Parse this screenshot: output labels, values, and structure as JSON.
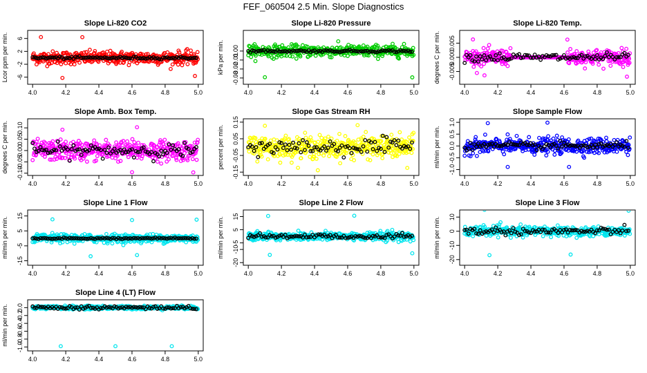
{
  "figure": {
    "title": "FEF_060504  2.5 Min. Slope Diagnostics"
  },
  "chart_data": [
    {
      "type": "scatter",
      "title": "Slope Li-820 CO2",
      "ylabel": "Lcor ppm per min.",
      "color": "#ff0000",
      "xlim": [
        3.97,
        5.03
      ],
      "ylim": [
        -8.2,
        8.5
      ],
      "xticks": [
        4.0,
        4.2,
        4.4,
        4.6,
        4.8,
        5.0
      ],
      "xtick_labels": [
        "4.0",
        "4.2",
        "4.4",
        "4.6",
        "4.8",
        "5.0"
      ],
      "yticks": [
        -6,
        -2,
        2,
        6
      ],
      "ytick_labels": [
        "-6",
        "-2",
        "2",
        "6"
      ],
      "noise": 1.4,
      "spread": 1.8,
      "black_spread": 0.35,
      "outliers": [
        4.05,
        4.18,
        4.3,
        4.98
      ],
      "outlier_amp": 6.5
    },
    {
      "type": "scatter",
      "title": "Slope Li-820 Pressure",
      "ylabel": "kPa per min.",
      "color": "#00cc00",
      "xlim": [
        3.97,
        5.03
      ],
      "ylim": [
        -0.037,
        0.023
      ],
      "xticks": [
        4.0,
        4.2,
        4.4,
        4.6,
        4.8,
        5.0
      ],
      "xtick_labels": [
        "4.0",
        "4.2",
        "4.4",
        "4.6",
        "4.8",
        "5.0"
      ],
      "yticks": [
        -0.03,
        -0.02,
        -0.01,
        0.0
      ],
      "ytick_labels": [
        "-0.03",
        "-0.02",
        "-0.01",
        "0.00"
      ],
      "noise": 0.007,
      "spread": 0.006,
      "black_spread": 0.0012,
      "outliers": [
        4.02,
        4.1,
        4.34,
        4.99
      ],
      "outlier_amp": 0.03
    },
    {
      "type": "scatter",
      "title": "Slope Li-820 Temp.",
      "ylabel": "degrees C per min.",
      "color": "#ff00ff",
      "xlim": [
        3.97,
        5.03
      ],
      "ylim": [
        -0.0095,
        0.0095
      ],
      "xticks": [
        4.0,
        4.2,
        4.4,
        4.6,
        4.8,
        5.0
      ],
      "xtick_labels": [
        "4.0",
        "4.2",
        "4.4",
        "4.6",
        "4.8",
        "5.0"
      ],
      "yticks": [
        -0.005,
        0.0,
        0.005
      ],
      "ytick_labels": [
        "-0.005",
        "0.000",
        "0.005"
      ],
      "noise": 0.0035,
      "spread": 0.0025,
      "black_spread": 0.0015,
      "flat_range": [
        4.28,
        4.62
      ],
      "outliers": [
        4.05,
        4.12,
        4.62,
        4.98
      ],
      "outlier_amp": 0.007
    },
    {
      "type": "scatter",
      "title": "Slope Amb. Box Temp.",
      "ylabel": "degrees C per min.",
      "color": "#ff00ff",
      "xlim": [
        3.97,
        5.03
      ],
      "ylim": [
        -0.11,
        0.14
      ],
      "xticks": [
        4.0,
        4.2,
        4.4,
        4.6,
        4.8,
        5.0
      ],
      "xtick_labels": [
        "4.0",
        "4.2",
        "4.4",
        "4.6",
        "4.8",
        "5.0"
      ],
      "yticks": [
        -0.1,
        -0.05,
        0.0,
        0.05,
        0.1
      ],
      "ytick_labels": [
        "-0.10",
        "-0.05",
        "0.00",
        "0.05",
        "0.10"
      ],
      "noise": 0.045,
      "spread": 0.04,
      "black_spread": 0.03,
      "outliers": [
        4.18,
        4.6,
        4.63,
        4.97
      ],
      "outlier_amp": 0.11
    },
    {
      "type": "scatter",
      "title": "Slope Gas Stream RH",
      "ylabel": "percent per min.",
      "color": "#ffff00",
      "xlim": [
        3.97,
        5.03
      ],
      "ylim": [
        -0.17,
        0.17
      ],
      "xticks": [
        4.0,
        4.2,
        4.4,
        4.6,
        4.8,
        5.0
      ],
      "xtick_labels": [
        "4.0",
        "4.2",
        "4.4",
        "4.6",
        "4.8",
        "5.0"
      ],
      "yticks": [
        -0.15,
        -0.05,
        0.05,
        0.15
      ],
      "ytick_labels": [
        "-0.15",
        "-0.05",
        "0.05",
        "0.15"
      ],
      "noise": 0.07,
      "spread": 0.06,
      "black_spread": 0.05,
      "outliers": [
        4.1,
        4.42,
        4.66,
        4.96
      ],
      "outlier_amp": 0.15
    },
    {
      "type": "scatter",
      "title": "Slope Sample Flow",
      "ylabel": "ml/min per min.",
      "color": "#0000ff",
      "xlim": [
        3.97,
        5.03
      ],
      "ylim": [
        -1.25,
        1.15
      ],
      "xticks": [
        4.0,
        4.2,
        4.4,
        4.6,
        4.8,
        5.0
      ],
      "xtick_labels": [
        "4.0",
        "4.2",
        "4.4",
        "4.6",
        "4.8",
        "5.0"
      ],
      "yticks": [
        -1.0,
        -0.5,
        0.0,
        0.5,
        1.0
      ],
      "ytick_labels": [
        "-1.0",
        "-0.5",
        "0.0",
        "0.5",
        "1.0"
      ],
      "noise": 0.2,
      "spread": 0.3,
      "black_spread": 0.15,
      "outliers": [
        4.14,
        4.26,
        4.5,
        4.63
      ],
      "outlier_amp": 1.0
    },
    {
      "type": "scatter",
      "title": "Slope Line 1 Flow",
      "ylabel": "ml/min per min.",
      "color": "#00e5ee",
      "xlim": [
        3.97,
        5.03
      ],
      "ylim": [
        -18,
        19
      ],
      "xticks": [
        4.0,
        4.2,
        4.4,
        4.6,
        4.8,
        5.0
      ],
      "xtick_labels": [
        "4.0",
        "4.2",
        "4.4",
        "4.6",
        "4.8",
        "5.0"
      ],
      "yticks": [
        -15,
        -5,
        5,
        15
      ],
      "ytick_labels": [
        "-15",
        "-5",
        "5",
        "15"
      ],
      "noise": 1.5,
      "spread": 2.5,
      "black_spread": 0.4,
      "outliers": [
        4.12,
        4.35,
        4.6,
        4.63,
        4.99
      ],
      "outlier_amp": 13
    },
    {
      "type": "scatter",
      "title": "Slope Line 2 Flow",
      "ylabel": "ml/min per min.",
      "color": "#00e5ee",
      "xlim": [
        3.97,
        5.03
      ],
      "ylim": [
        -22,
        20
      ],
      "xticks": [
        4.0,
        4.2,
        4.4,
        4.6,
        4.8,
        5.0
      ],
      "xtick_labels": [
        "4.0",
        "4.2",
        "4.4",
        "4.6",
        "4.8",
        "5.0"
      ],
      "yticks": [
        -20,
        -10,
        -5,
        5,
        15
      ],
      "ytick_labels": [
        "-20",
        "-10",
        "-5",
        "5",
        "15"
      ],
      "noise": 2.0,
      "spread": 3.0,
      "black_spread": 2.0,
      "outliers": [
        4.12,
        4.13,
        4.64,
        4.99
      ],
      "outlier_amp": 16
    },
    {
      "type": "scatter",
      "title": "Slope Line 3 Flow",
      "ylabel": "ml/min per min.",
      "color": "#00e5ee",
      "xlim": [
        3.97,
        5.03
      ],
      "ylim": [
        -24,
        15
      ],
      "xticks": [
        4.0,
        4.2,
        4.4,
        4.6,
        4.8,
        5.0
      ],
      "xtick_labels": [
        "4.0",
        "4.2",
        "4.4",
        "4.6",
        "4.8",
        "5.0"
      ],
      "yticks": [
        -20,
        -10,
        0,
        10
      ],
      "ytick_labels": [
        "-20",
        "-10",
        "0",
        "10"
      ],
      "noise": 2.5,
      "spread": 3.0,
      "black_spread": 2.5,
      "outliers": [
        4.12,
        4.15,
        4.62,
        4.64,
        4.99
      ],
      "outlier_amp": 18
    },
    {
      "type": "scatter",
      "title": "Slope Line 4 (LT) Flow",
      "ylabel": "ml/min per min.",
      "color": "#00e5ee",
      "xlim": [
        3.97,
        5.03
      ],
      "ylim": [
        -1.1,
        0.2
      ],
      "xticks": [
        4.0,
        4.2,
        4.4,
        4.6,
        4.8,
        5.0
      ],
      "xtick_labels": [
        "4.0",
        "4.2",
        "4.4",
        "4.6",
        "4.8",
        "5.0"
      ],
      "yticks": [
        -1.0,
        -0.8,
        -0.6,
        -0.4,
        -0.2,
        0.0
      ],
      "ytick_labels": [
        "-1.0",
        "-0.8",
        "-0.6",
        "-0.4",
        "-0.2",
        "0.0"
      ],
      "noise": 0.05,
      "spread": 0.04,
      "black_spread": 0.05,
      "outliers": [
        4.17,
        4.5,
        4.84
      ],
      "outlier_amp": -1.0
    }
  ]
}
